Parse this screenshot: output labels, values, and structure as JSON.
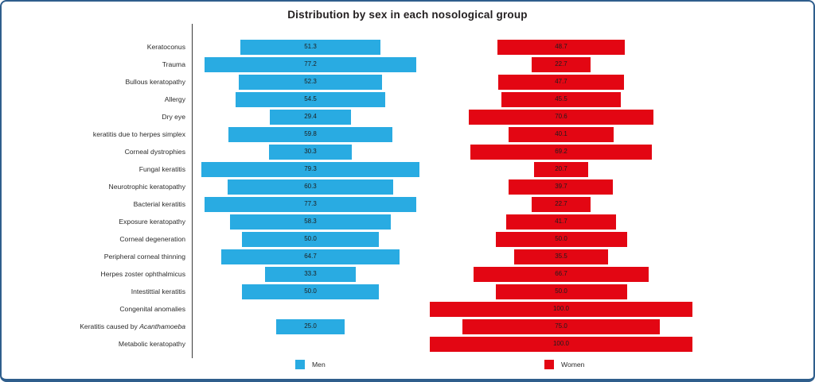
{
  "frame": {
    "border_color": "#2f5e8c",
    "background_color": "#ffffff"
  },
  "chart_data": {
    "type": "bar",
    "subtype": "horizontal-centered-diverging",
    "title": "Distribution by sex in each nosological group",
    "categories": [
      "Keratoconus",
      "Trauma",
      "Bullous keratopathy",
      "Allergy",
      "Dry eye",
      "keratitis due to herpes simplex",
      "Corneal dystrophies",
      "Fungal keratitis",
      "Neurotrophic keratopathy",
      "Bacterial keratitis",
      "Exposure keratopathy",
      "Corneal degeneration",
      "Peripheral corneal thinning",
      "Herpes zoster ophthalmicus",
      "Intestittial keratitis",
      "Congenital anomalies",
      "Keratitis caused by Acanthamoeba",
      "Metabolic keratopathy"
    ],
    "category_italic_words": [
      "Acanthamoeba"
    ],
    "series": [
      {
        "name": "Men",
        "color": "#29ABE2",
        "values": [
          51.3,
          77.2,
          52.3,
          54.5,
          29.4,
          59.8,
          30.3,
          79.3,
          60.3,
          77.3,
          58.3,
          50.0,
          64.7,
          33.3,
          50.0,
          null,
          25.0,
          null
        ]
      },
      {
        "name": "Women",
        "color": "#E30613",
        "values": [
          48.7,
          22.7,
          47.7,
          45.5,
          70.6,
          40.1,
          69.2,
          20.7,
          39.7,
          22.7,
          41.7,
          50.0,
          35.5,
          66.7,
          50.0,
          100.0,
          75.0,
          100.0
        ]
      }
    ],
    "value_labels_shown": true,
    "value_label_format": "one-decimal",
    "legend_position": "bottom",
    "xlabel": "",
    "ylabel": "",
    "axis": {
      "value_axis_shown": false,
      "category_axis_line_shown": true
    }
  }
}
